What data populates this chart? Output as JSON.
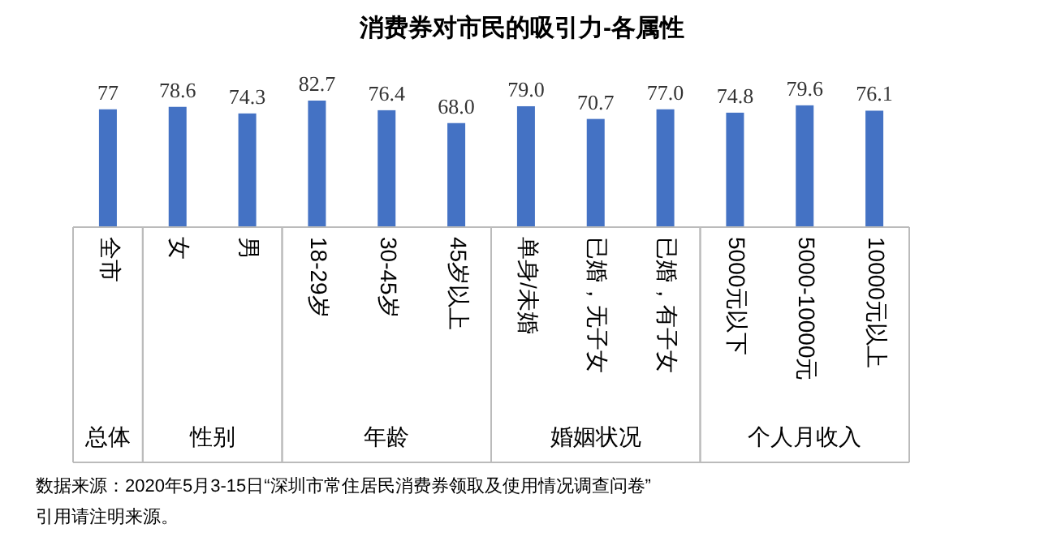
{
  "chart_data": {
    "type": "bar",
    "title": "消费券对市民的吸引力-各属性",
    "categories": [
      "全市",
      "女",
      "男",
      "18-29岁",
      "30-45岁",
      "45岁以上",
      "单身/未婚",
      "已婚，无子女",
      "已婚，有子女",
      "5000元以下",
      "5000-10000元",
      "10000元以上"
    ],
    "values": [
      77,
      78.6,
      74.3,
      82.7,
      76.4,
      68.0,
      79.0,
      70.7,
      77.0,
      74.8,
      79.6,
      76.1
    ],
    "value_labels": [
      "77",
      "78.6",
      "74.3",
      "82.7",
      "76.4",
      "68.0",
      "79.0",
      "70.7",
      "77.0",
      "74.8",
      "79.6",
      "76.1"
    ],
    "color": "#4472c4",
    "annotations": [
      "总体",
      "性别",
      "年龄",
      "婚姻状况",
      "个人月收入",
      "数据来源：2020年5月3-15日“深圳市常住居民消费券领取及使用情况调查问卷”",
      "引用请注明来源。"
    ]
  }
}
